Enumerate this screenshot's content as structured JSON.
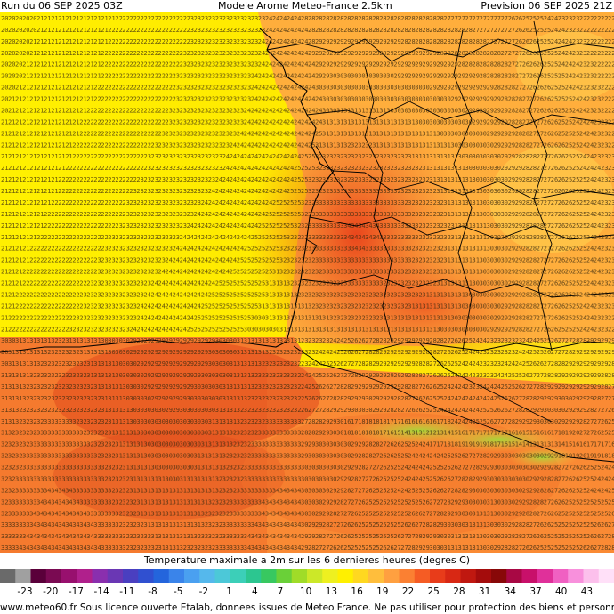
{
  "header": {
    "run": "Run du 06 SEP 2025 03Z",
    "model": "Modele Arome Meteo-France 2.5km",
    "forecast": "Prevision 06 SEP 2025 21Z"
  },
  "legend": {
    "title": "Temperature maximale a 2m sur les 6 dernieres heures (degres C)",
    "ticks": [
      "-23",
      "-20",
      "-17",
      "-14",
      "-11",
      "-8",
      "-5",
      "-2",
      "1",
      "4",
      "7",
      "10",
      "13",
      "16",
      "19",
      "22",
      "25",
      "28",
      "31",
      "34",
      "37",
      "40",
      "43"
    ],
    "colors": [
      "#6a6a6a",
      "#a0a0a0",
      "#5a003a",
      "#7a0a52",
      "#98106e",
      "#b0208c",
      "#8a2fae",
      "#6a37b4",
      "#4a3fc0",
      "#3050d0",
      "#2465dc",
      "#3a84ea",
      "#4aa0f0",
      "#55b8ec",
      "#4cc8d8",
      "#3ccfb8",
      "#2cc690",
      "#38c860",
      "#6ad038",
      "#a0dc28",
      "#cce828",
      "#eef020",
      "#fff000",
      "#ffd820",
      "#ffbe3c",
      "#ffa040",
      "#fb8032",
      "#f55c24",
      "#e83c1a",
      "#d82814",
      "#c01810",
      "#a40c0c",
      "#880808",
      "#a80844",
      "#c8106a",
      "#e0309a",
      "#f060c2",
      "#f890dc",
      "#fcc0ec",
      "#ffe0f8"
    ]
  },
  "footer": "www.meteo60.fr Sous licence ouverte Etalab, donnees issues de Meteo France. Ne pas utiliser pour protection des biens et personnes",
  "map": {
    "region": "Sud-Ouest France / Golfe de Gascogne / Pyrenees",
    "unit": "degres C",
    "value_range_shown": [
      12,
      36
    ],
    "sea_west_values": [
      20,
      21,
      22
    ],
    "landes_values": [
      31,
      32,
      33,
      34,
      35
    ],
    "pyrenees_values": [
      12,
      13,
      14,
      15,
      16,
      17,
      18,
      19
    ]
  }
}
